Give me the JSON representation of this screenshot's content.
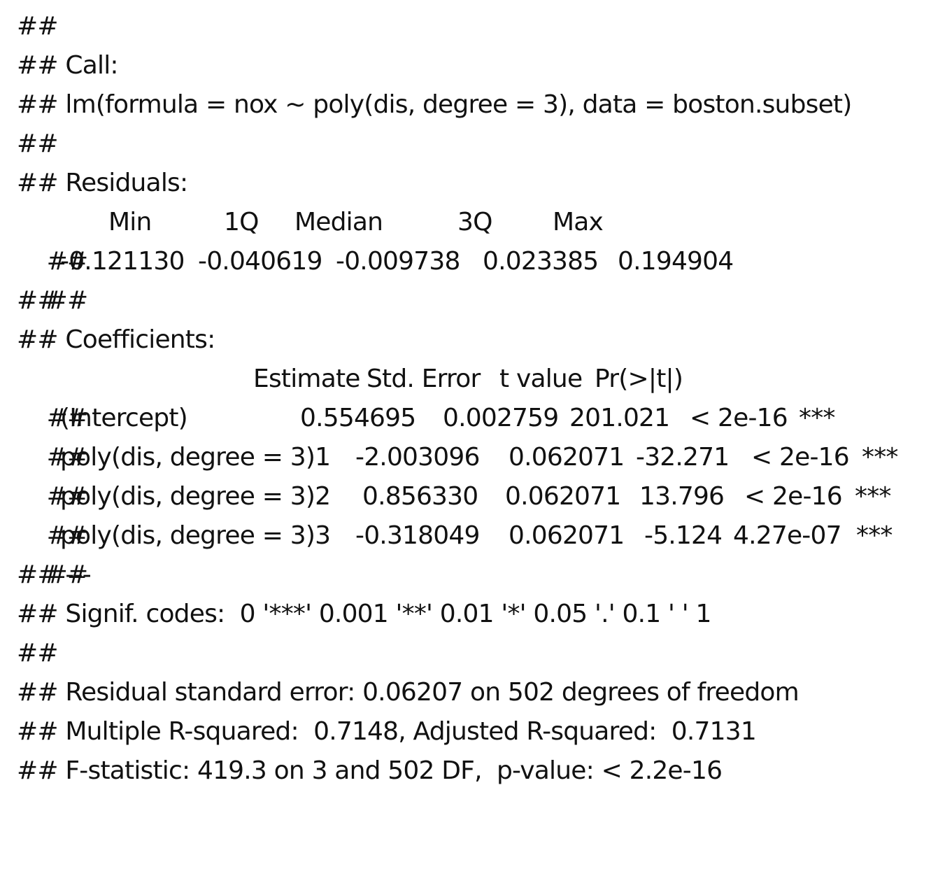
{
  "prefix": "##",
  "call": {
    "label": "Call:",
    "formula": "lm(formula = nox ~ poly(dis, degree = 3), data = boston.subset)"
  },
  "residuals": {
    "label": "Residuals:",
    "headers": [
      "Min",
      "1Q",
      "Median",
      "3Q",
      "Max"
    ],
    "values": [
      "-0.121130",
      "-0.040619",
      "-0.009738",
      "0.023385",
      "0.194904"
    ]
  },
  "coefficients": {
    "label": "Coefficients:",
    "headers": [
      "Estimate",
      "Std. Error",
      "t value",
      "Pr(>|t|)"
    ],
    "rows": [
      {
        "term": "(Intercept)",
        "estimate": "0.554695",
        "std_error": "0.002759",
        "t_value": "201.021",
        "p_value": "< 2e-16",
        "signif": "***"
      },
      {
        "term": "poly(dis, degree = 3)1",
        "estimate": "-2.003096",
        "std_error": "0.062071",
        "t_value": "-32.271",
        "p_value": "< 2e-16",
        "signif": "***"
      },
      {
        "term": "poly(dis, degree = 3)2",
        "estimate": "0.856330",
        "std_error": "0.062071",
        "t_value": "13.796",
        "p_value": "< 2e-16",
        "signif": "***"
      },
      {
        "term": "poly(dis, degree = 3)3",
        "estimate": "-0.318049",
        "std_error": "0.062071",
        "t_value": "-5.124",
        "p_value": "4.27e-07",
        "signif": "***"
      }
    ]
  },
  "separator": "---",
  "signif_codes": "Signif. codes:  0 '***' 0.001 '**' 0.01 '*' 0.05 '.' 0.1 ' ' 1",
  "summary": {
    "residual_se": "Residual standard error: 0.06207 on 502 degrees of freedom",
    "r_squared": "Multiple R-squared:  0.7148, Adjusted R-squared:  0.7131",
    "f_statistic": "F-statistic: 419.3 on 3 and 502 DF,  p-value: < 2.2e-16"
  }
}
